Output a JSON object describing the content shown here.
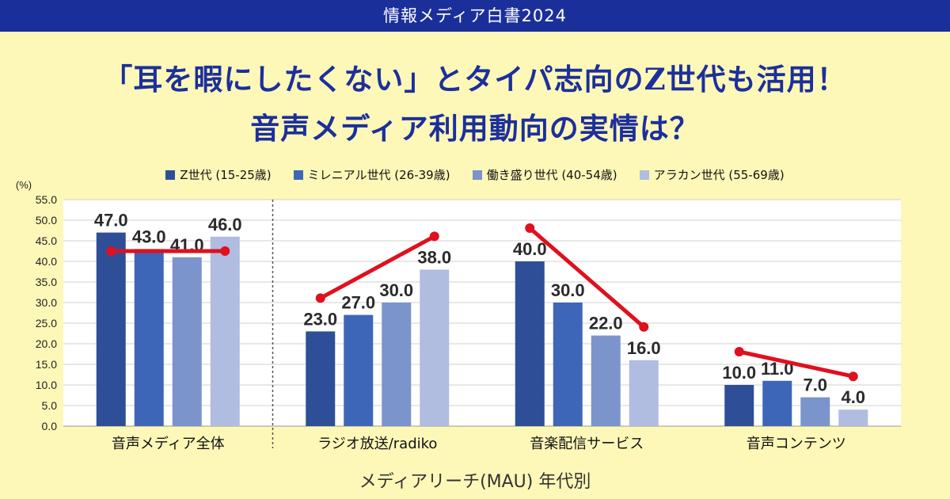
{
  "header": {
    "publication": "情報メディア白書2024"
  },
  "headline": {
    "line1": "「耳を暇にしたくない」とタイパ志向のZ世代も活用！",
    "line2": "音声メディア利用動向の実情は？"
  },
  "chart_data": {
    "type": "bar",
    "ylabel": "(%)",
    "ylim": [
      0,
      55
    ],
    "yticks": [
      "0.0",
      "5.0",
      "10.0",
      "15.0",
      "20.0",
      "25.0",
      "30.0",
      "35.0",
      "40.0",
      "45.0",
      "50.0",
      "55.0"
    ],
    "xlabel": "メディアリーチ(MAU) 年代別",
    "categories": [
      "音声メディア全体",
      "ラジオ放送/radiko",
      "音楽配信サービス",
      "音声コンテンツ"
    ],
    "series": [
      {
        "name": "Z世代 (15-25歳)",
        "color": "#2e4f97",
        "values": [
          47.0,
          23.0,
          40.0,
          10.0
        ],
        "labels": [
          "47.0",
          "23.0",
          "40.0",
          "10.0"
        ]
      },
      {
        "name": "ミレニアル世代 (26-39歳)",
        "color": "#3e66b8",
        "values": [
          43.0,
          27.0,
          30.0,
          11.0
        ],
        "labels": [
          "43.0",
          "27.0",
          "30.0",
          "11.0"
        ]
      },
      {
        "name": "働き盛り世代 (40-54歳)",
        "color": "#7b94cc",
        "values": [
          41.0,
          30.0,
          22.0,
          7.0
        ],
        "labels": [
          "41.0",
          "30.0",
          "22.0",
          "7.0"
        ]
      },
      {
        "name": "アラカン世代 (55-69歳)",
        "color": "#b0bde0",
        "values": [
          46.0,
          38.0,
          16.0,
          4.0
        ],
        "labels": [
          "46.0",
          "38.0",
          "16.0",
          "4.0"
        ]
      }
    ],
    "trend_lines": {
      "color": "#e0101e"
    },
    "grid": true,
    "legend_position": "top"
  }
}
